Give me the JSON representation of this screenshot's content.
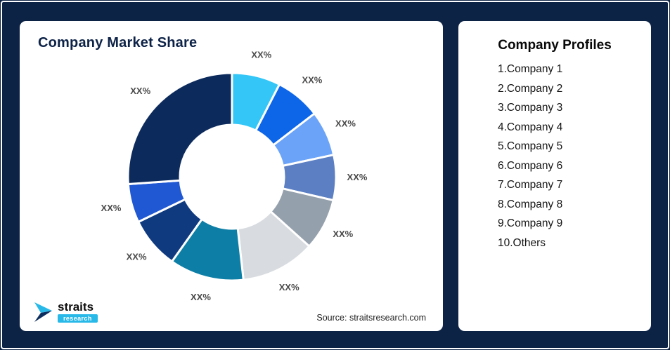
{
  "page": {
    "background_color": "#0d2345"
  },
  "market_share_card": {
    "title": "Company Market Share",
    "source": "Source: straitsresearch.com",
    "logo": {
      "name": "straits",
      "sub": "research",
      "accent_color": "#29b9e8",
      "navy_color": "#0d2d5e"
    }
  },
  "profiles_card": {
    "title": "Company Profiles",
    "items": [
      "1.Company 1",
      "2.Company 2",
      "3.Company 3",
      "4.Company 4",
      "5.Company 5",
      "6.Company 6",
      "7.Company 7",
      "8.Company 8",
      "9.Company 9",
      "10.Others"
    ]
  },
  "chart_data": {
    "type": "pie",
    "variant": "donut",
    "title": "Company Market Share",
    "start_angle_deg": -90,
    "direction": "clockwise",
    "label_color": "#4a4a4a",
    "values_shown_as": "placeholder",
    "segments": [
      {
        "label": "XX%",
        "value": 7.5,
        "color": "#33c6f7"
      },
      {
        "label": "XX%",
        "value": 7.0,
        "color": "#0d66e8"
      },
      {
        "label": "XX%",
        "value": 7.0,
        "color": "#6aa3f8"
      },
      {
        "label": "XX%",
        "value": 7.0,
        "color": "#5b7fc2"
      },
      {
        "label": "XX%",
        "value": 8.0,
        "color": "#95a0ad"
      },
      {
        "label": "XX%",
        "value": 11.5,
        "color": "#d8dbdf"
      },
      {
        "label": "XX%",
        "value": 11.5,
        "color": "#0d7fa6"
      },
      {
        "label": "XX%",
        "value": 8.0,
        "color": "#0f3a80"
      },
      {
        "label": "XX%",
        "value": 6.0,
        "color": "#2058d4"
      },
      {
        "label": "XX%",
        "value": 26.0,
        "color": "#0c2a5c"
      }
    ]
  }
}
